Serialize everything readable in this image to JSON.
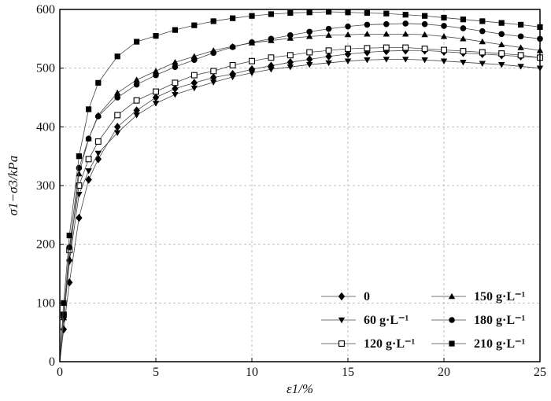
{
  "chart_data": {
    "type": "line",
    "xlabel": "ε1/%",
    "ylabel": "σ1−σ3/kPa",
    "xlim": [
      0,
      25
    ],
    "ylim": [
      0,
      600
    ],
    "xticks": [
      0,
      5,
      10,
      15,
      20,
      25
    ],
    "yticks": [
      0,
      100,
      200,
      300,
      400,
      500,
      600
    ],
    "grid": true,
    "legend_position": "bottom-right",
    "series": [
      {
        "name": "0",
        "marker": "diamond",
        "x": [
          0,
          0.2,
          0.5,
          1,
          1.5,
          2,
          3,
          4,
          5,
          6,
          7,
          8,
          9,
          10,
          11,
          12,
          13,
          14,
          15,
          16,
          17,
          18,
          19,
          20,
          21,
          22,
          23,
          24,
          25
        ],
        "y": [
          0,
          55,
          135,
          245,
          310,
          345,
          400,
          428,
          450,
          465,
          475,
          484,
          490,
          498,
          504,
          510,
          515,
          520,
          524,
          527,
          529,
          530,
          530,
          528,
          526,
          524,
          522,
          520,
          518
        ]
      },
      {
        "name": "60 g·L⁻¹",
        "marker": "triangle-down",
        "x": [
          0,
          0.2,
          0.5,
          1,
          1.5,
          2,
          3,
          4,
          5,
          6,
          7,
          8,
          9,
          10,
          11,
          12,
          13,
          14,
          15,
          16,
          17,
          18,
          19,
          20,
          21,
          22,
          23,
          24,
          25
        ],
        "y": [
          0,
          72,
          170,
          285,
          325,
          355,
          390,
          420,
          440,
          455,
          466,
          476,
          485,
          492,
          498,
          502,
          506,
          509,
          512,
          514,
          515,
          515,
          514,
          512,
          510,
          508,
          506,
          503,
          500
        ]
      },
      {
        "name": "120 g·L⁻¹",
        "marker": "square-open",
        "x": [
          0,
          0.2,
          0.5,
          1,
          1.5,
          2,
          3,
          4,
          5,
          6,
          7,
          8,
          9,
          10,
          11,
          12,
          13,
          14,
          15,
          16,
          17,
          18,
          19,
          20,
          21,
          22,
          23,
          24,
          25
        ],
        "y": [
          0,
          80,
          190,
          300,
          345,
          375,
          420,
          445,
          460,
          475,
          488,
          495,
          505,
          512,
          518,
          522,
          527,
          530,
          533,
          534,
          535,
          535,
          533,
          531,
          529,
          527,
          525,
          522,
          518
        ]
      },
      {
        "name": "150 g·L⁻¹",
        "marker": "triangle-up",
        "x": [
          0,
          0.2,
          0.5,
          1,
          1.5,
          2,
          3,
          4,
          5,
          6,
          7,
          8,
          9,
          10,
          11,
          12,
          13,
          14,
          15,
          16,
          17,
          18,
          19,
          20,
          21,
          22,
          23,
          24,
          25
        ],
        "y": [
          0,
          75,
          175,
          320,
          380,
          420,
          458,
          480,
          495,
          510,
          520,
          530,
          537,
          543,
          547,
          551,
          554,
          556,
          557,
          558,
          558,
          558,
          557,
          554,
          550,
          545,
          540,
          535,
          530
        ]
      },
      {
        "name": "180 g·L⁻¹",
        "marker": "circle",
        "x": [
          0,
          0.2,
          0.5,
          1,
          1.5,
          2,
          3,
          4,
          5,
          6,
          7,
          8,
          9,
          10,
          11,
          12,
          13,
          14,
          15,
          16,
          17,
          18,
          19,
          20,
          21,
          22,
          23,
          24,
          25
        ],
        "y": [
          0,
          80,
          195,
          330,
          380,
          418,
          450,
          472,
          488,
          502,
          514,
          526,
          536,
          544,
          550,
          556,
          562,
          567,
          571,
          574,
          575,
          576,
          575,
          572,
          568,
          563,
          558,
          554,
          550
        ]
      },
      {
        "name": "210 g·L⁻¹",
        "marker": "square",
        "x": [
          0,
          0.2,
          0.5,
          1,
          1.5,
          2,
          3,
          4,
          5,
          6,
          7,
          8,
          9,
          10,
          11,
          12,
          13,
          14,
          15,
          16,
          17,
          18,
          19,
          20,
          21,
          22,
          23,
          24,
          25
        ],
        "y": [
          0,
          100,
          215,
          350,
          430,
          475,
          520,
          545,
          555,
          565,
          573,
          580,
          585,
          589,
          592,
          594,
          595,
          596,
          595,
          594,
          593,
          591,
          589,
          586,
          583,
          580,
          577,
          574,
          570
        ]
      }
    ]
  }
}
